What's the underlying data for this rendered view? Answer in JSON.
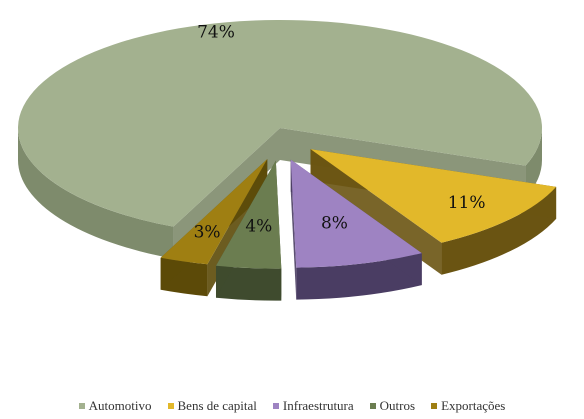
{
  "chart_data": {
    "type": "pie",
    "title": "",
    "categories": [
      "Automotivo",
      "Bens de capital",
      "Infraestrutura",
      "Outros",
      "Exportações"
    ],
    "values": [
      74,
      11,
      8,
      4,
      3
    ],
    "labels": [
      "74%",
      "11%",
      "8%",
      "4%",
      "3%"
    ],
    "colors": [
      "#a3b18f",
      "#e2b82a",
      "#9e83c2",
      "#6b7d50",
      "#9f7f12"
    ],
    "side_colors": [
      "#7e8b6c",
      "#6a5412",
      "#4a3d63",
      "#3f4b2e",
      "#5c4a08"
    ],
    "exploded": [
      false,
      true,
      true,
      true,
      true
    ],
    "legend_position": "bottom",
    "three_d": true
  },
  "legend": {
    "items": [
      {
        "label": "Automotivo",
        "color": "#a3b18f"
      },
      {
        "label": "Bens de capital",
        "color": "#e2b82a"
      },
      {
        "label": "Infraestrutura",
        "color": "#9e83c2"
      },
      {
        "label": "Outros",
        "color": "#6b7d50"
      },
      {
        "label": "Exportações",
        "color": "#9f7f12"
      }
    ]
  }
}
